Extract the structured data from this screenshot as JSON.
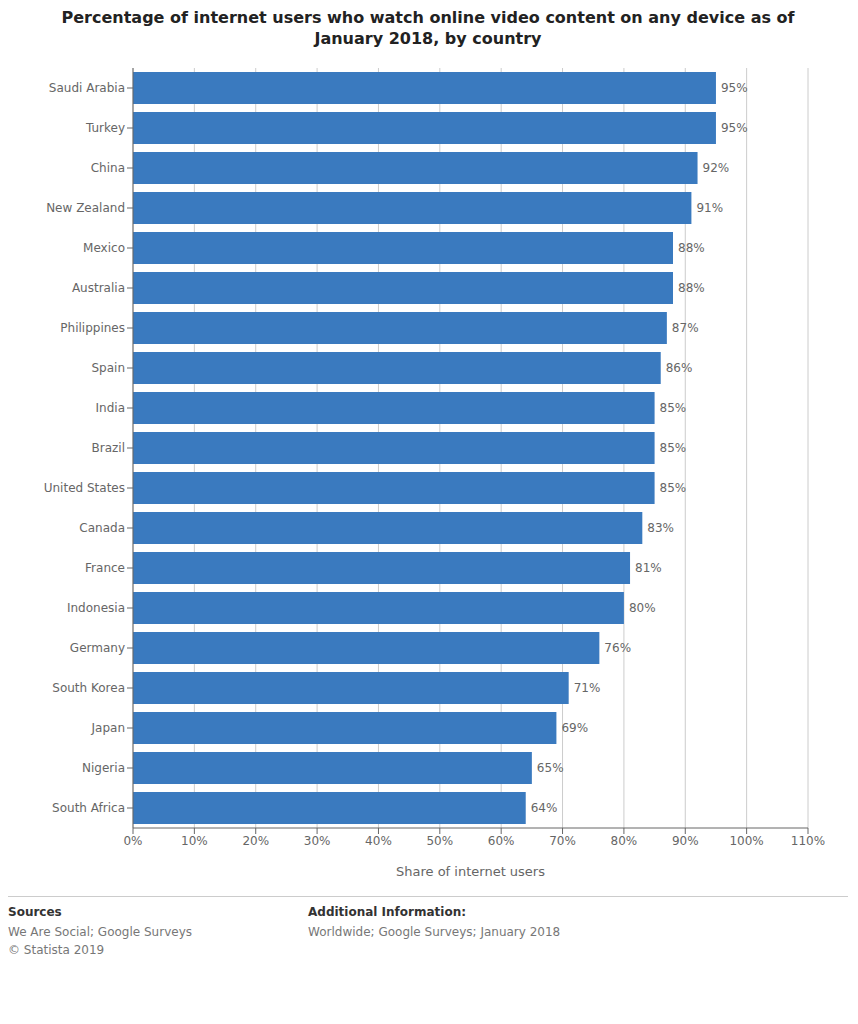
{
  "chart_data": {
    "type": "bar",
    "orientation": "horizontal",
    "title": "Percentage of internet users who watch online video content on any device as of\nJanuary 2018, by country",
    "categories": [
      "Saudi Arabia",
      "Turkey",
      "China",
      "New Zealand",
      "Mexico",
      "Australia",
      "Philippines",
      "Spain",
      "India",
      "Brazil",
      "United States",
      "Canada",
      "France",
      "Indonesia",
      "Germany",
      "South Korea",
      "Japan",
      "Nigeria",
      "South Africa"
    ],
    "values": [
      95,
      95,
      92,
      91,
      88,
      88,
      87,
      86,
      85,
      85,
      85,
      83,
      81,
      80,
      76,
      71,
      69,
      65,
      64
    ],
    "value_labels": [
      "95%",
      "95%",
      "92%",
      "91%",
      "88%",
      "88%",
      "87%",
      "86%",
      "85%",
      "85%",
      "85%",
      "83%",
      "81%",
      "80%",
      "76%",
      "71%",
      "69%",
      "65%",
      "64%"
    ],
    "data_labels": true,
    "color": "#3a7abf",
    "xlabel": "Share of internet users",
    "xlim": [
      0,
      110
    ],
    "xticks": [
      {
        "value": 0,
        "label": "0%"
      },
      {
        "value": 10,
        "label": "10%"
      },
      {
        "value": 20,
        "label": "20%"
      },
      {
        "value": 30,
        "label": "30%"
      },
      {
        "value": 40,
        "label": "40%"
      },
      {
        "value": 50,
        "label": "50%"
      },
      {
        "value": 60,
        "label": "60%"
      },
      {
        "value": 70,
        "label": "70%"
      },
      {
        "value": 80,
        "label": "80%"
      },
      {
        "value": 90,
        "label": "90%"
      },
      {
        "value": 100,
        "label": "100%"
      },
      {
        "value": 110,
        "label": "110%"
      }
    ],
    "grid": true,
    "annotations": [
      "Sources",
      "We Are Social; Google Surveys\n© Statista 2019",
      "Additional Information:",
      "Worldwide; Google Surveys; January 2018"
    ]
  }
}
